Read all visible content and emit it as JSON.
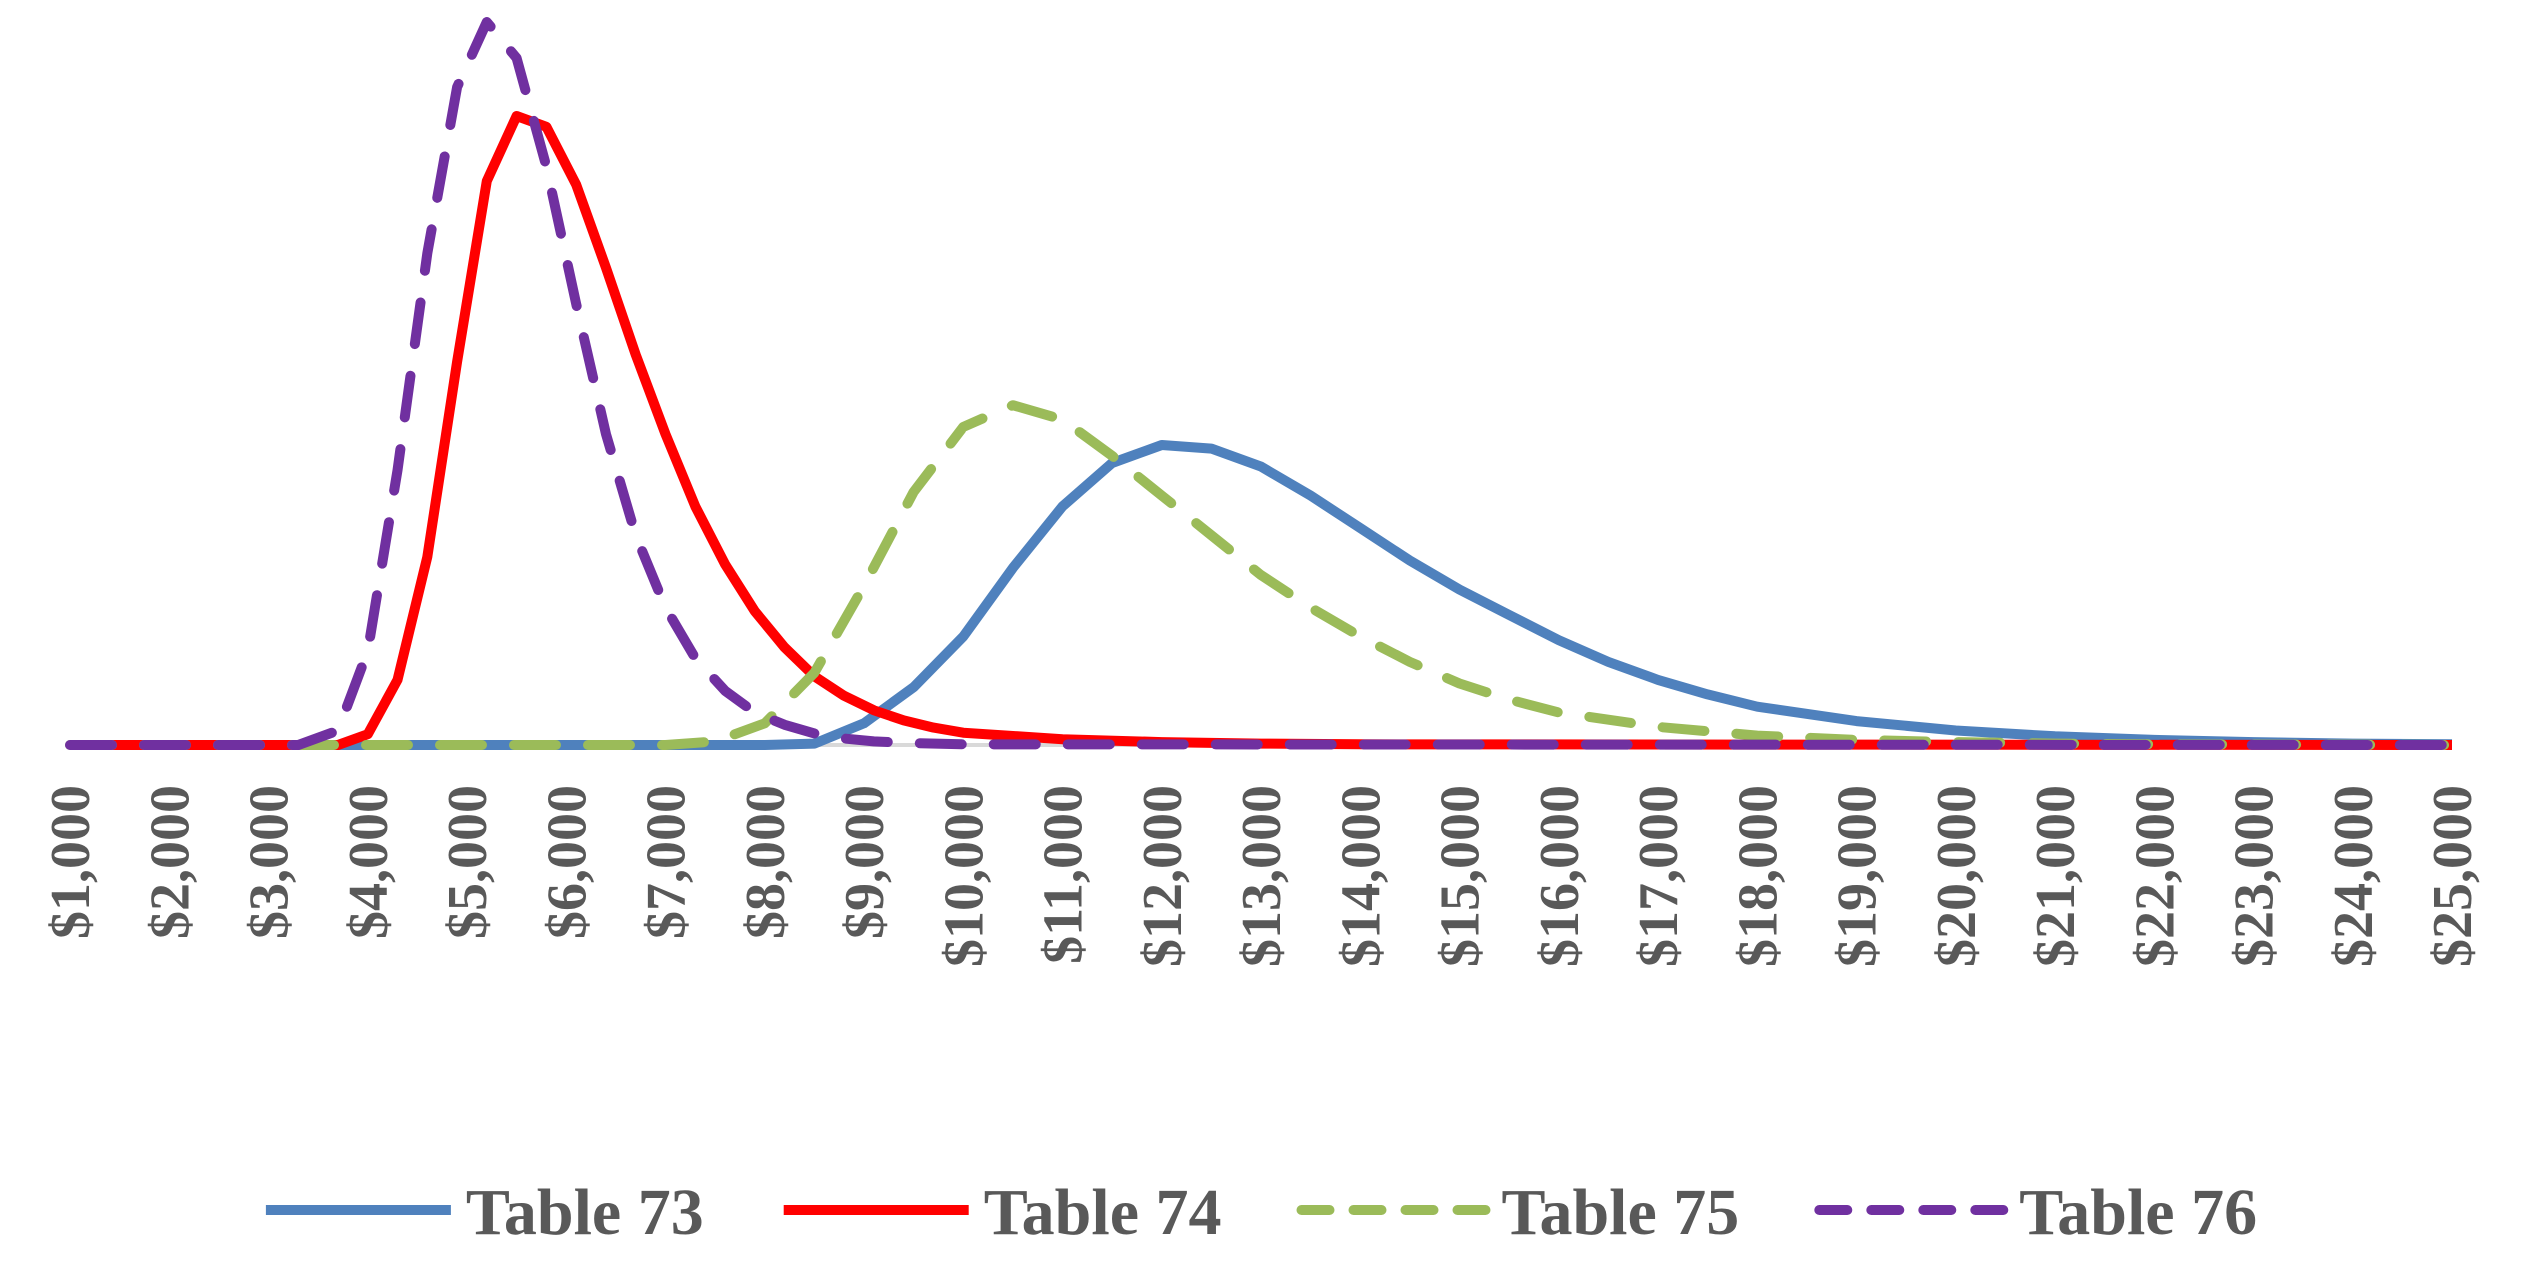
{
  "chart_data": {
    "type": "line",
    "title": "",
    "xlabel": "",
    "ylabel": "",
    "x_ticks": [
      "$1,000",
      "$2,000",
      "$3,000",
      "$4,000",
      "$5,000",
      "$6,000",
      "$7,000",
      "$8,000",
      "$9,000",
      "$10,000",
      "$11,000",
      "$12,000",
      "$13,000",
      "$14,000",
      "$15,000",
      "$16,000",
      "$17,000",
      "$18,000",
      "$19,000",
      "$20,000",
      "$21,000",
      "$22,000",
      "$23,000",
      "$24,000",
      "$25,000"
    ],
    "xlim": [
      1000,
      25000
    ],
    "ylim": [
      0,
      1.0
    ],
    "y_axis_visible": false,
    "grid": false,
    "legend_position": "bottom",
    "series": [
      {
        "name": "Table 73",
        "color": "#4F81BD",
        "style": "solid",
        "points": [
          [
            1000,
            0
          ],
          [
            8000,
            0
          ],
          [
            8500,
            0.002
          ],
          [
            9000,
            0.03
          ],
          [
            9500,
            0.08
          ],
          [
            10000,
            0.15
          ],
          [
            10500,
            0.245
          ],
          [
            11000,
            0.33
          ],
          [
            11500,
            0.39
          ],
          [
            12000,
            0.415
          ],
          [
            12500,
            0.41
          ],
          [
            13000,
            0.385
          ],
          [
            13500,
            0.345
          ],
          [
            14000,
            0.3
          ],
          [
            14500,
            0.255
          ],
          [
            15000,
            0.215
          ],
          [
            15500,
            0.18
          ],
          [
            16000,
            0.145
          ],
          [
            16500,
            0.115
          ],
          [
            17000,
            0.09
          ],
          [
            17500,
            0.07
          ],
          [
            18000,
            0.053
          ],
          [
            19000,
            0.033
          ],
          [
            20000,
            0.02
          ],
          [
            21000,
            0.012
          ],
          [
            22000,
            0.007
          ],
          [
            23000,
            0.004
          ],
          [
            24000,
            0.002
          ],
          [
            25000,
            0.001
          ]
        ]
      },
      {
        "name": "Table 74",
        "color": "#FF0000",
        "style": "solid",
        "points": [
          [
            1000,
            0
          ],
          [
            3700,
            0
          ],
          [
            4000,
            0.015
          ],
          [
            4300,
            0.09
          ],
          [
            4600,
            0.26
          ],
          [
            4900,
            0.53
          ],
          [
            5200,
            0.78
          ],
          [
            5500,
            0.87
          ],
          [
            5800,
            0.855
          ],
          [
            6100,
            0.775
          ],
          [
            6400,
            0.66
          ],
          [
            6700,
            0.54
          ],
          [
            7000,
            0.43
          ],
          [
            7300,
            0.33
          ],
          [
            7600,
            0.25
          ],
          [
            7900,
            0.185
          ],
          [
            8200,
            0.135
          ],
          [
            8500,
            0.095
          ],
          [
            8800,
            0.068
          ],
          [
            9100,
            0.048
          ],
          [
            9400,
            0.034
          ],
          [
            9700,
            0.024
          ],
          [
            10000,
            0.017
          ],
          [
            11000,
            0.008
          ],
          [
            12000,
            0.004
          ],
          [
            13000,
            0.002
          ],
          [
            14000,
            0.001
          ],
          [
            25000,
            0
          ]
        ]
      },
      {
        "name": "Table 75",
        "color": "#9BBB59",
        "style": "dashed",
        "points": [
          [
            1000,
            0
          ],
          [
            7000,
            0
          ],
          [
            7500,
            0.005
          ],
          [
            8000,
            0.03
          ],
          [
            8500,
            0.1
          ],
          [
            9000,
            0.22
          ],
          [
            9500,
            0.35
          ],
          [
            10000,
            0.44
          ],
          [
            10500,
            0.47
          ],
          [
            11000,
            0.45
          ],
          [
            11500,
            0.4
          ],
          [
            12000,
            0.345
          ],
          [
            12500,
            0.29
          ],
          [
            13000,
            0.235
          ],
          [
            13500,
            0.19
          ],
          [
            14000,
            0.15
          ],
          [
            14500,
            0.115
          ],
          [
            15000,
            0.085
          ],
          [
            15500,
            0.063
          ],
          [
            16000,
            0.045
          ],
          [
            17000,
            0.025
          ],
          [
            18000,
            0.013
          ],
          [
            19000,
            0.007
          ],
          [
            20000,
            0.004
          ],
          [
            21000,
            0.002
          ],
          [
            22000,
            0.001
          ],
          [
            25000,
            0
          ]
        ]
      },
      {
        "name": "Table 76",
        "color": "#7030A0",
        "style": "dashed",
        "points": [
          [
            1000,
            0
          ],
          [
            3300,
            0
          ],
          [
            3700,
            0.02
          ],
          [
            4000,
            0.13
          ],
          [
            4300,
            0.38
          ],
          [
            4600,
            0.68
          ],
          [
            4900,
            0.91
          ],
          [
            5200,
            1.0
          ],
          [
            5500,
            0.95
          ],
          [
            5800,
            0.8
          ],
          [
            6100,
            0.61
          ],
          [
            6400,
            0.43
          ],
          [
            6700,
            0.29
          ],
          [
            7000,
            0.19
          ],
          [
            7300,
            0.12
          ],
          [
            7600,
            0.075
          ],
          [
            7900,
            0.045
          ],
          [
            8200,
            0.028
          ],
          [
            8500,
            0.016
          ],
          [
            8800,
            0.009
          ],
          [
            9100,
            0.005
          ],
          [
            9400,
            0.003
          ],
          [
            10000,
            0.001
          ],
          [
            25000,
            0
          ]
        ]
      }
    ]
  }
}
